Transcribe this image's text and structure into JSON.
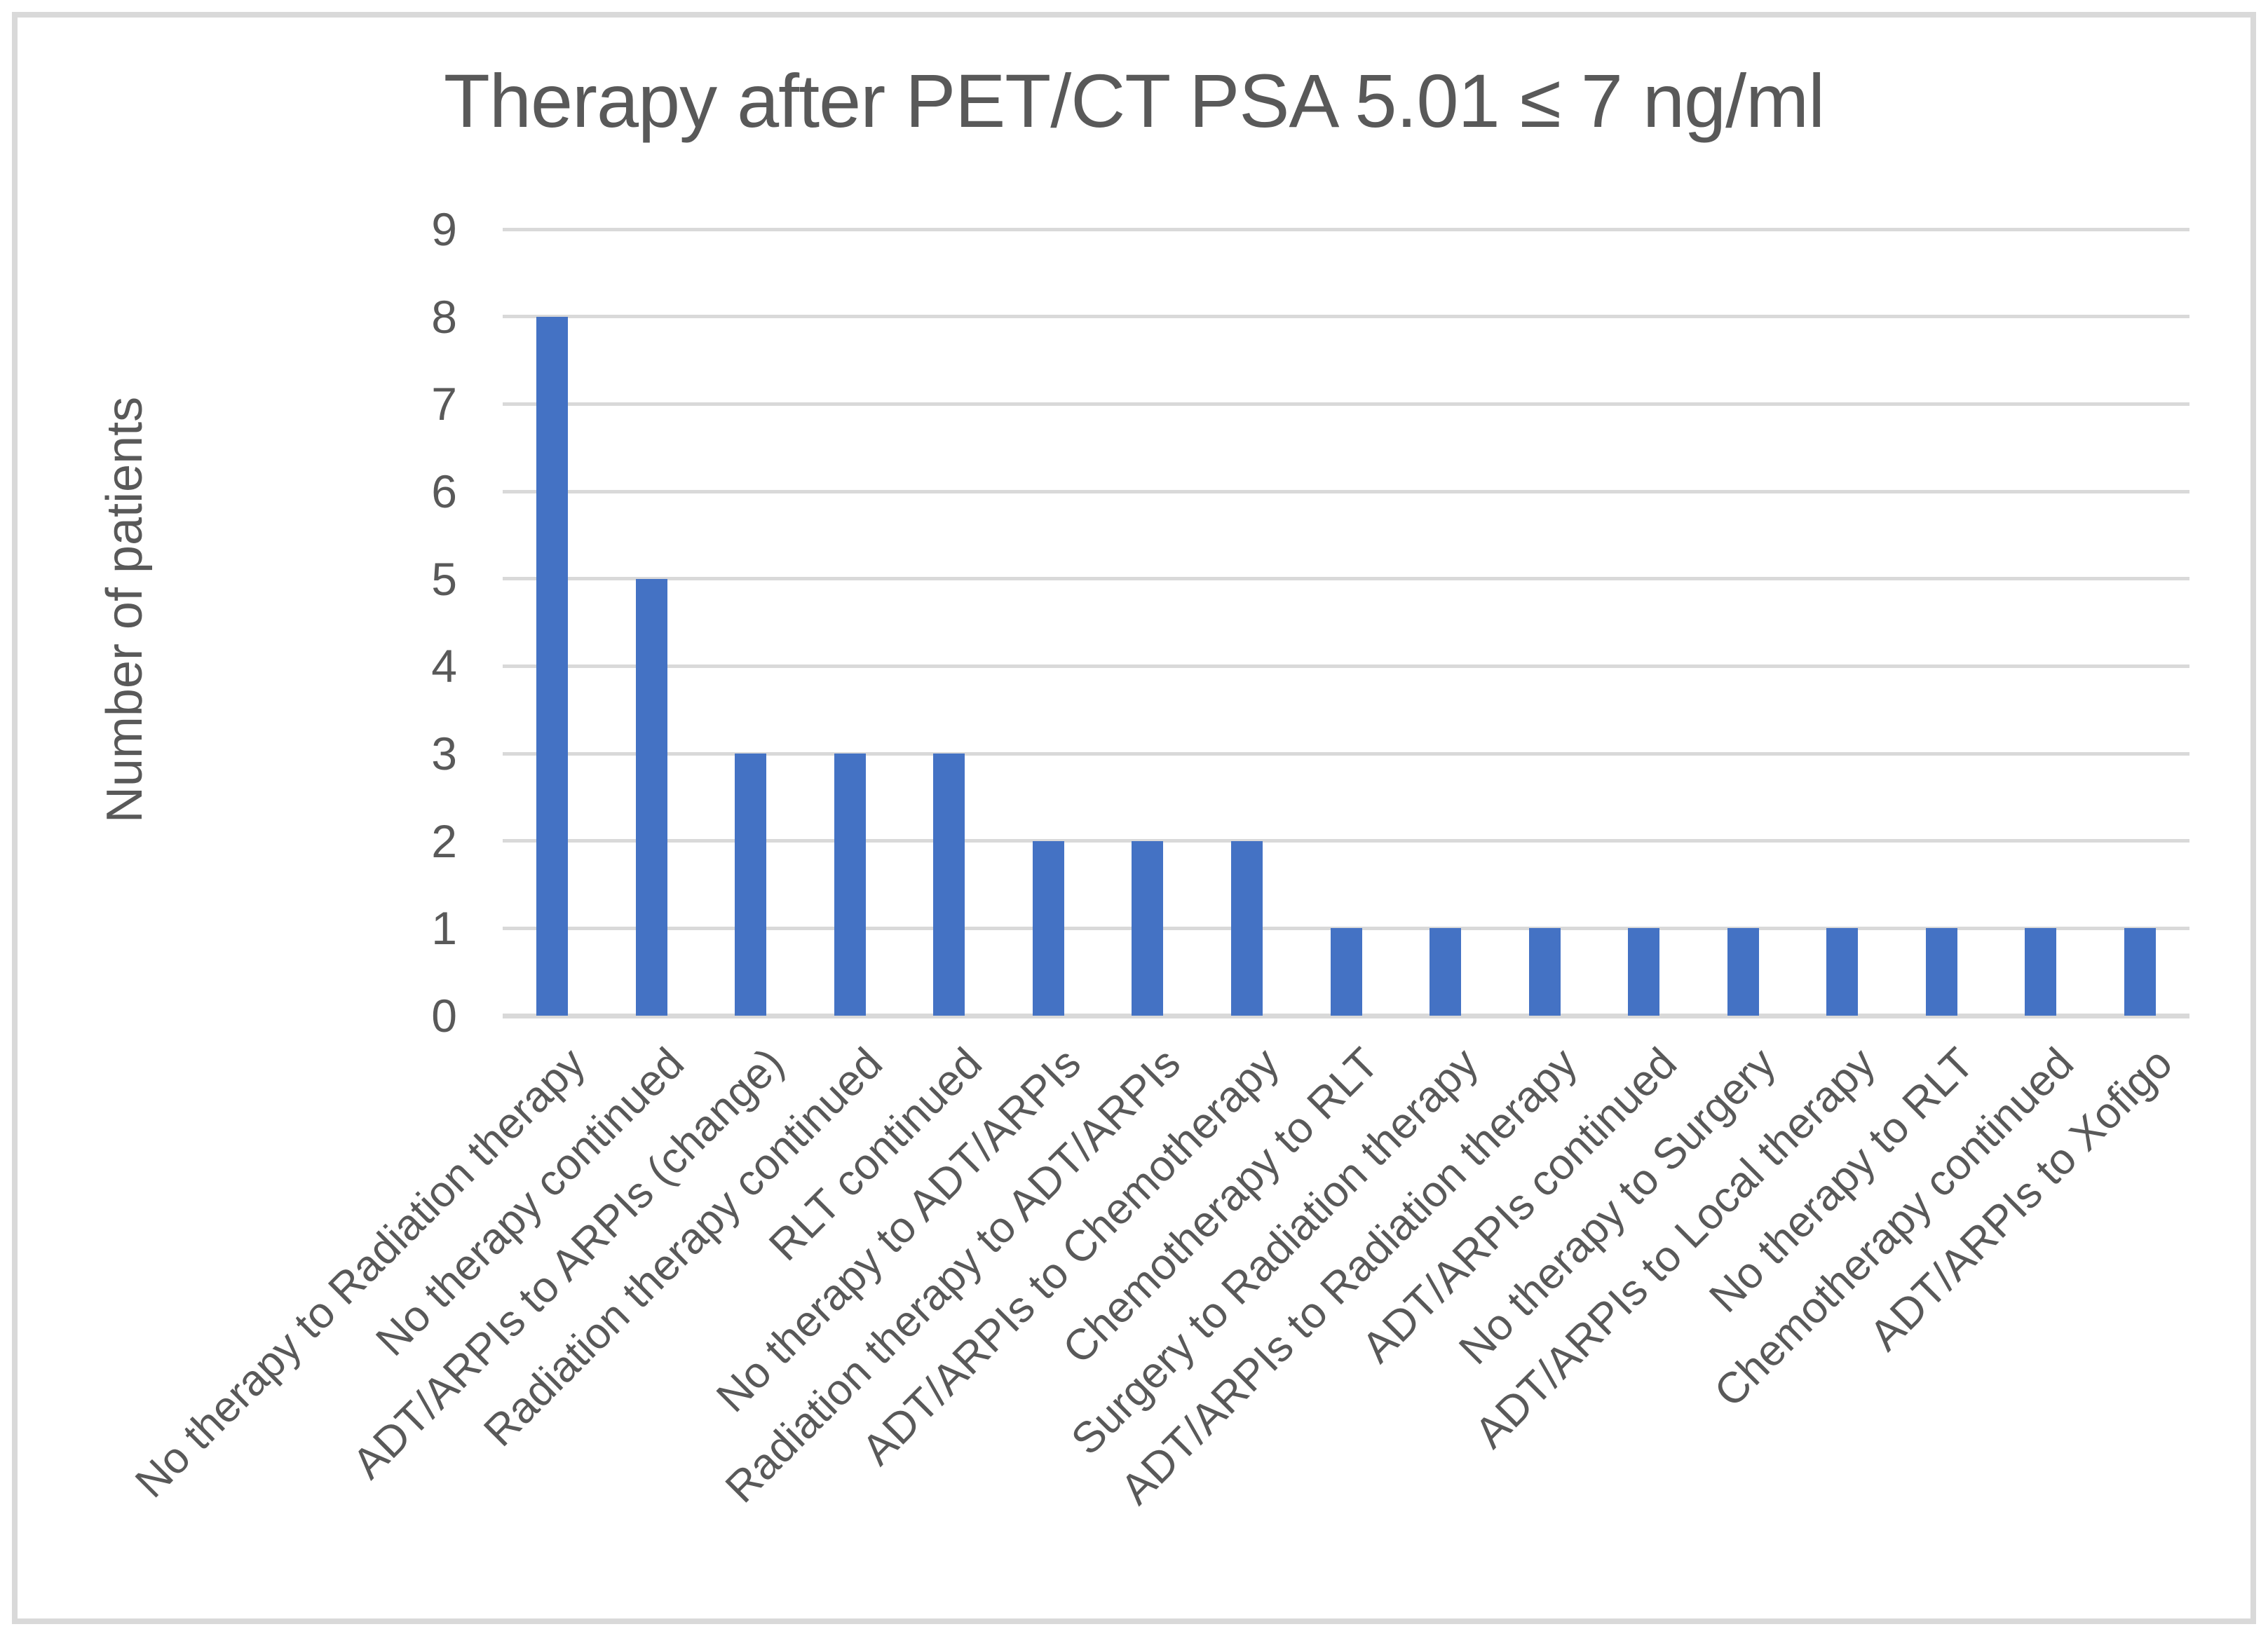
{
  "chart_data": {
    "type": "bar",
    "title": "Therapy after PET/CT PSA 5.01 ≤ 7 ng/ml",
    "xlabel": "",
    "ylabel": "Number of patients",
    "categories": [
      "No therapy to Radiation therapy",
      "No therapy continued",
      "ADT/ARPIs to ARPIs (change)",
      "Radiation therapy continued",
      "RLT continued",
      "No therapy to ADT/ARPIs",
      "Radiation therapy to ADT/ARPIs",
      "ADT/ARPIs to Chemotherapy",
      "Chemotherapy to RLT",
      "Surgery to Radiation therapy",
      "ADT/ARPIs to Radiation therapy",
      "ADT/ARPIs continued",
      "No therapy to Surgery",
      "ADT/ARPIs to Local therapy",
      "No therapy to RLT",
      "Chemotherapy continued",
      "ADT/ARPIs to Xofigo"
    ],
    "values": [
      8,
      5,
      3,
      3,
      3,
      2,
      2,
      2,
      1,
      1,
      1,
      1,
      1,
      1,
      1,
      1,
      1
    ],
    "ylim": [
      0,
      9
    ],
    "yticks": [
      0,
      1,
      2,
      3,
      4,
      5,
      6,
      7,
      8,
      9
    ],
    "grid": true,
    "legend": false,
    "xlabel_rotation_deg": 45,
    "bar_color": "#4472C4",
    "gridline_color": "#d9d9d9",
    "axis_text_color": "#595959",
    "title_color": "#595959",
    "frame_border_color": "#d9d9d9",
    "background_color": "#ffffff"
  }
}
